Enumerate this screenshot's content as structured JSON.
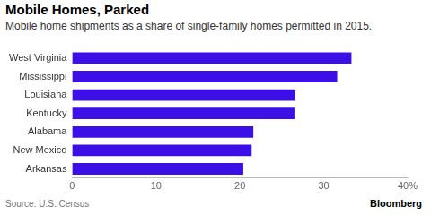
{
  "chart_data": {
    "type": "bar",
    "orientation": "horizontal",
    "title": "Mobile Homes, Parked",
    "subtitle": "Mobile home shipments as a share of single-family homes permitted in 2015.",
    "source": "Source: U.S. Census",
    "credit": "Bloomberg",
    "categories": [
      "West Virginia",
      "Mississippi",
      "Louisiana",
      "Kentucky",
      "Alabama",
      "New Mexico",
      "Arkansas"
    ],
    "values": [
      33.3,
      31.6,
      26.6,
      26.5,
      21.6,
      21.4,
      20.4
    ],
    "color": "#3c0fe6",
    "xlim": [
      0,
      40
    ],
    "xticks": [
      0,
      10,
      20,
      30,
      {
        "value": 40,
        "label": "40%"
      }
    ],
    "grid": false
  }
}
